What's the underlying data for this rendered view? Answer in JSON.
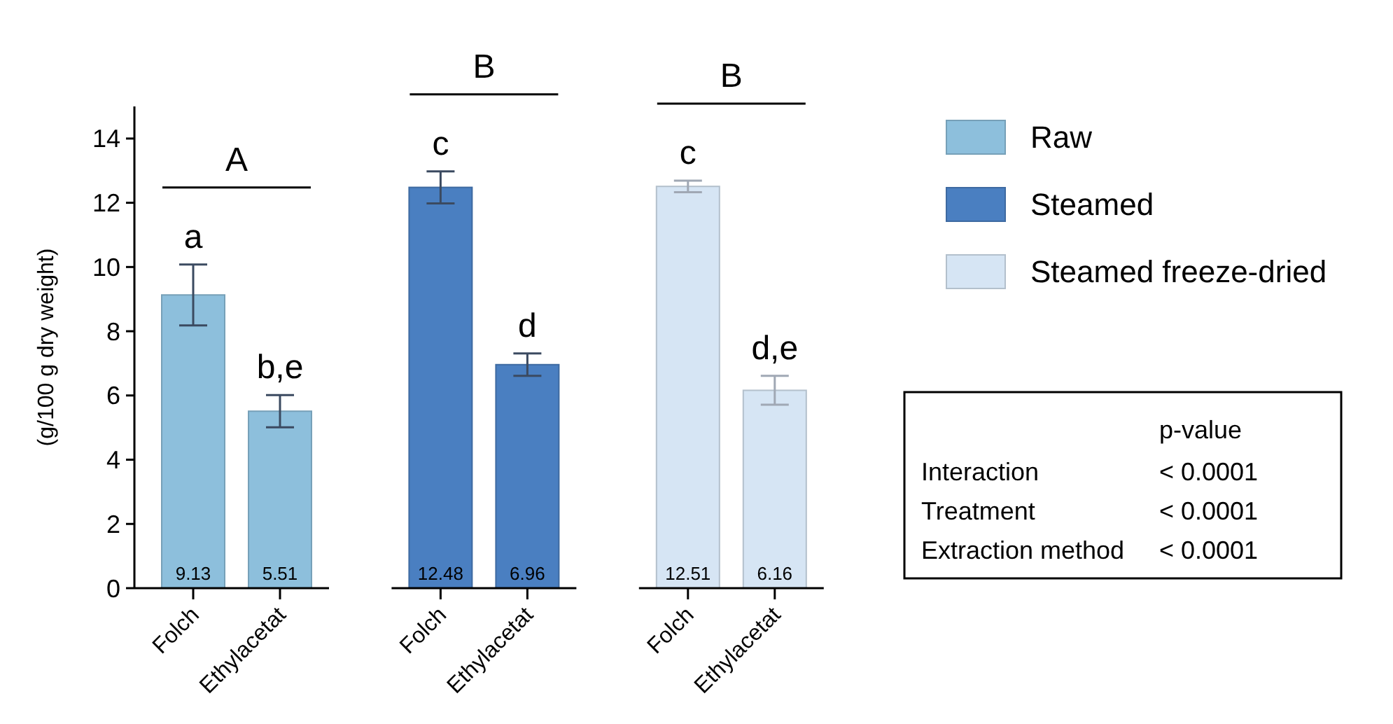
{
  "chart_data": {
    "type": "bar",
    "ylabel": "(g/100 g dry weight)",
    "categories": [
      "Folch",
      "Ethylacetat",
      "Folch",
      "Ethylacetat",
      "Folch",
      "Ethylacetat"
    ],
    "series": [
      {
        "name": "Raw",
        "color": "#8dbfdc",
        "values": [
          9.13,
          5.51,
          null,
          null,
          null,
          null
        ],
        "errors": [
          0.95,
          0.5,
          null,
          null,
          null,
          null
        ]
      },
      {
        "name": "Steamed",
        "color": "#4a7fc1",
        "values": [
          null,
          null,
          12.48,
          6.96,
          null,
          null
        ],
        "errors": [
          null,
          null,
          0.5,
          0.35,
          null,
          null
        ]
      },
      {
        "name": "Steamed freeze-dried",
        "color": "#d6e5f4",
        "values": [
          null,
          null,
          null,
          null,
          12.51,
          6.16
        ],
        "errors": [
          null,
          null,
          null,
          null,
          0.18,
          0.45
        ]
      }
    ],
    "ylim": [
      0,
      15
    ],
    "yticks": [
      0,
      2,
      4,
      6,
      8,
      10,
      12,
      14
    ],
    "legend": "top right",
    "data_labels": true,
    "annotations": [
      "a",
      "b,e",
      "c",
      "d",
      "c",
      "d,e",
      "A",
      "B",
      "B",
      "p-value",
      "Interaction",
      "< 0.0001",
      "Treatment",
      "< 0.0001",
      "Extraction method",
      "< 0.0001"
    ]
  }
}
